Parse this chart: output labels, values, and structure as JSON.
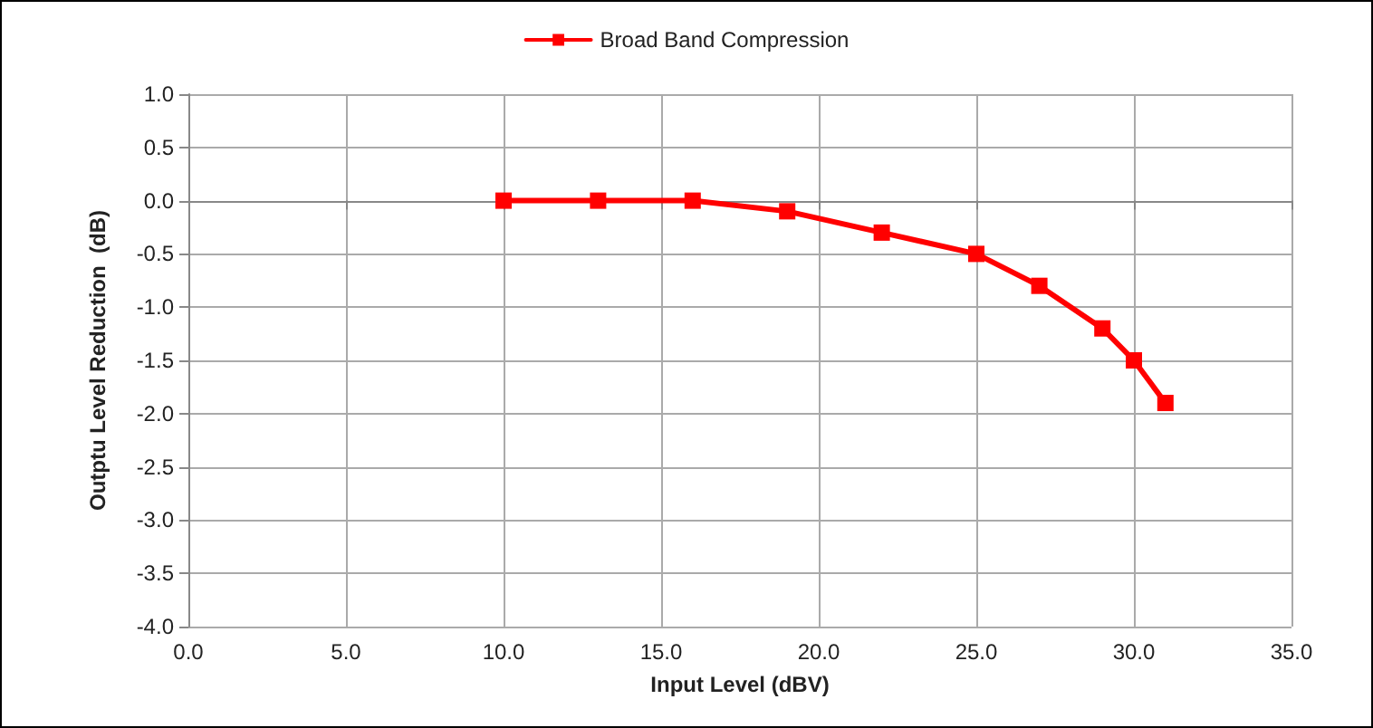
{
  "chart_data": {
    "type": "line",
    "xlabel": "Input Level (dBV)",
    "ylabel": "Outptu Level Reduction  (dB)",
    "x": [
      10,
      13,
      16,
      19,
      22,
      25,
      27,
      29,
      30,
      31
    ],
    "series": [
      {
        "name": "Broad Band Compression",
        "color": "#ff0000",
        "values": [
          0,
          0,
          0,
          -0.1,
          -0.3,
          -0.5,
          -0.8,
          -1.2,
          -1.5,
          -1.9
        ]
      }
    ],
    "xlim": [
      0,
      35
    ],
    "xticks": [
      {
        "value": 0,
        "label": "0.0"
      },
      {
        "value": 5,
        "label": "5.0"
      },
      {
        "value": 10,
        "label": "10.0"
      },
      {
        "value": 15,
        "label": "15.0"
      },
      {
        "value": 20,
        "label": "20.0"
      },
      {
        "value": 25,
        "label": "25.0"
      },
      {
        "value": 30,
        "label": "30.0"
      },
      {
        "value": 35,
        "label": "35.0"
      }
    ],
    "ylim": [
      -4,
      1
    ],
    "yticks": [
      {
        "value": -4,
        "label": "-4.0"
      },
      {
        "value": -3.5,
        "label": "-3.5"
      },
      {
        "value": -3,
        "label": "-3.0"
      },
      {
        "value": -2.5,
        "label": "-2.5"
      },
      {
        "value": -2,
        "label": "-2.0"
      },
      {
        "value": -1.5,
        "label": "-1.5"
      },
      {
        "value": -1,
        "label": "-1.0"
      },
      {
        "value": -0.5,
        "label": "-0.5"
      },
      {
        "value": 0,
        "label": "0.0"
      },
      {
        "value": 0.5,
        "label": "0.5"
      },
      {
        "value": 1,
        "label": "1.0"
      }
    ],
    "grid": true,
    "legend": "top",
    "marker": "square",
    "line_style": "solid"
  }
}
